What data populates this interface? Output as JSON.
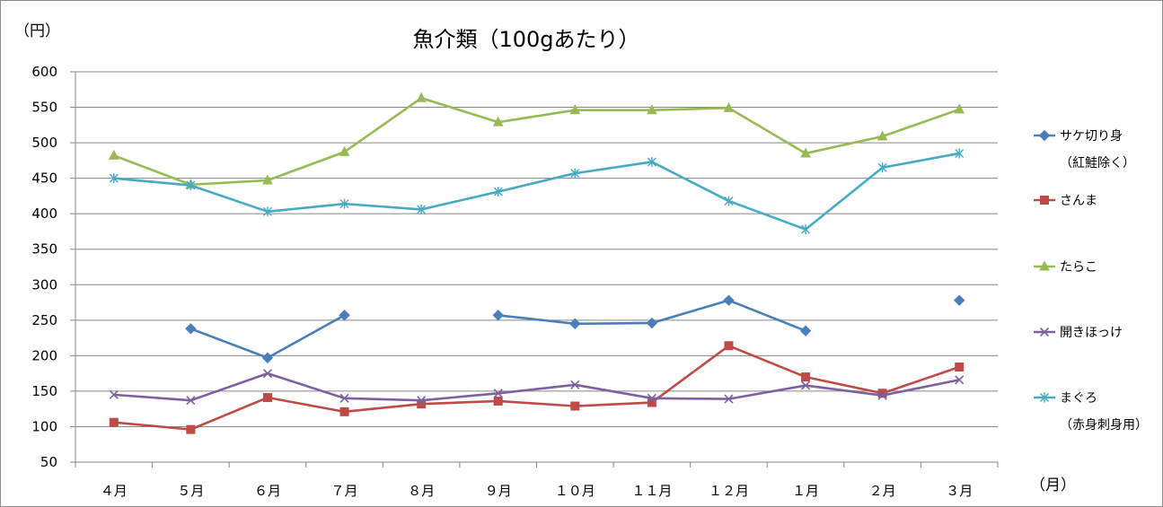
{
  "chart_data": {
    "type": "line",
    "title": "魚介類（100gあたり）",
    "ylabel": "（円）",
    "xlabel": "（月）",
    "ylim": [
      50,
      600
    ],
    "yticks": [
      600,
      550,
      500,
      450,
      400,
      350,
      300,
      250,
      200,
      150,
      100,
      50
    ],
    "grid": true,
    "legend_position": "right",
    "categories": [
      "４月",
      "５月",
      "６月",
      "７月",
      "８月",
      "９月",
      "１０月",
      "１１月",
      "１２月",
      "１月",
      "２月",
      "３月"
    ],
    "series": [
      {
        "name": "サケ切り身",
        "name_line2": "（紅鮭除く）",
        "color": "#4a7ebb",
        "marker": "diamond",
        "values": [
          null,
          238,
          197,
          257,
          null,
          257,
          245,
          246,
          278,
          235,
          null,
          278
        ]
      },
      {
        "name": "さんま",
        "name_line2": "",
        "color": "#be4b48",
        "marker": "square",
        "values": [
          106,
          96,
          141,
          121,
          132,
          136,
          129,
          134,
          214,
          170,
          147,
          184
        ]
      },
      {
        "name": "たらこ",
        "name_line2": "",
        "color": "#98b954",
        "marker": "triangle",
        "values": [
          482,
          441,
          447,
          487,
          563,
          529,
          546,
          546,
          549,
          485,
          509,
          547
        ]
      },
      {
        "name": "開きほっけ",
        "name_line2": "",
        "color": "#7d60a0",
        "marker": "x",
        "values": [
          145,
          137,
          175,
          140,
          137,
          147,
          159,
          140,
          139,
          158,
          144,
          166
        ]
      },
      {
        "name": "まぐろ",
        "name_line2": "（赤身刺身用）",
        "color": "#46aac5",
        "marker": "star",
        "values": [
          450,
          440,
          403,
          414,
          406,
          431,
          457,
          473,
          418,
          378,
          465,
          485
        ]
      }
    ]
  }
}
